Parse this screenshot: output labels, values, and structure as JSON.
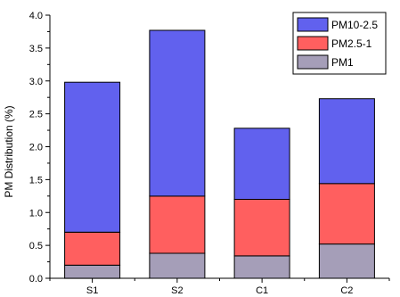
{
  "chart_data": {
    "type": "bar",
    "stacked": true,
    "title": "",
    "xlabel": "",
    "ylabel": "PM Distribution (%)",
    "ylim": [
      0,
      4.0
    ],
    "yticks": [
      "0.0",
      "0.5",
      "1.0",
      "1.5",
      "2.0",
      "2.5",
      "3.0",
      "3.5",
      "4.0"
    ],
    "categories": [
      "S1",
      "S2",
      "C1",
      "C2"
    ],
    "grid": false,
    "legend_position": "top-right",
    "legend_order": [
      "PM10-2.5",
      "PM2.5-1",
      "PM1"
    ],
    "series": [
      {
        "name": "PM1",
        "color": "#a59eb8",
        "values": [
          0.2,
          0.38,
          0.34,
          0.52
        ]
      },
      {
        "name": "PM2.5-1",
        "color": "#ff5f5f",
        "values": [
          0.5,
          0.87,
          0.86,
          0.92
        ]
      },
      {
        "name": "PM10-2.5",
        "color": "#6161ee",
        "values": [
          2.28,
          2.52,
          1.08,
          1.29
        ]
      }
    ]
  }
}
